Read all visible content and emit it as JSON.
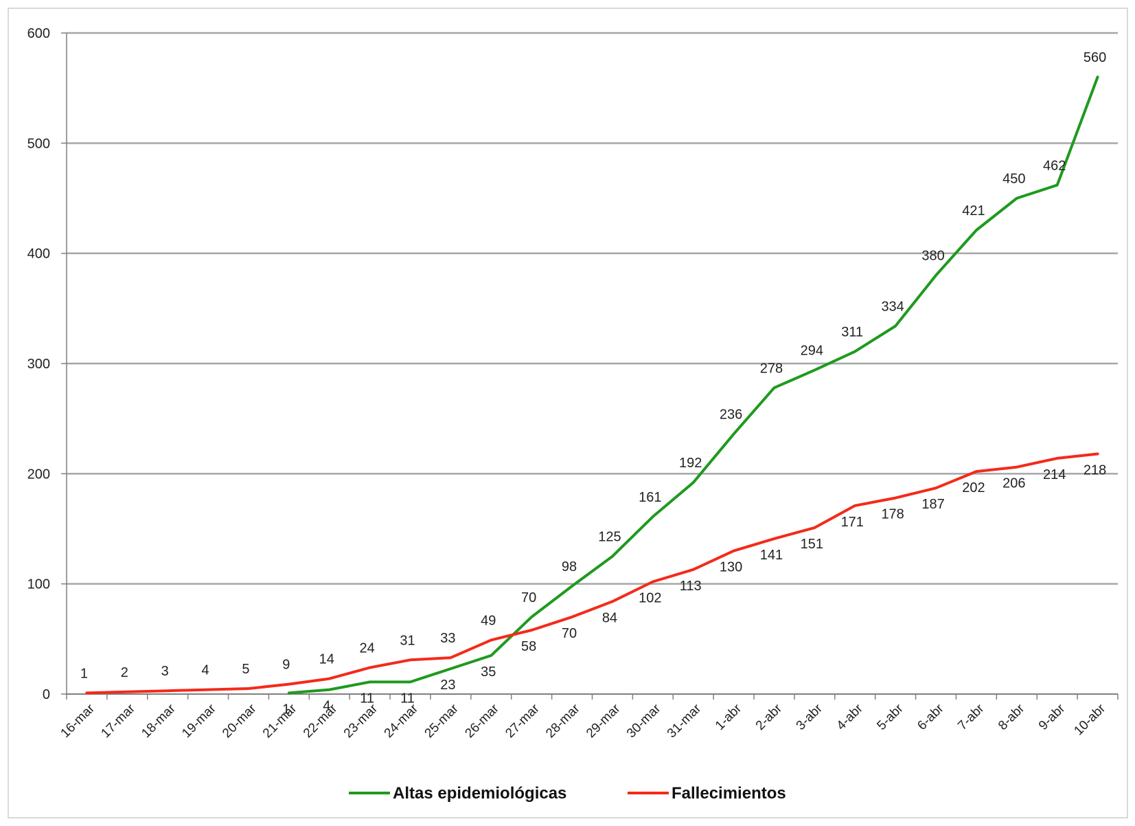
{
  "chart_data": {
    "type": "line",
    "categories": [
      "16-mar",
      "17-mar",
      "18-mar",
      "19-mar",
      "20-mar",
      "21-mar",
      "22-mar",
      "23-mar",
      "24-mar",
      "25-mar",
      "26-mar",
      "27-mar",
      "28-mar",
      "29-mar",
      "30-mar",
      "31-mar",
      "1-abr",
      "2-abr",
      "3-abr",
      "4-abr",
      "5-abr",
      "6-abr",
      "7-abr",
      "8-abr",
      "9-abr",
      "10-abr"
    ],
    "series": [
      {
        "name": "Altas epidemiológicas",
        "color": "#1e9a1e",
        "values": [
          null,
          null,
          null,
          null,
          null,
          1,
          4,
          11,
          11,
          23,
          35,
          70,
          98,
          125,
          161,
          192,
          236,
          278,
          294,
          311,
          334,
          380,
          421,
          450,
          462,
          560
        ]
      },
      {
        "name": "Fallecimientos",
        "color": "#f42a1a",
        "values": [
          1,
          2,
          3,
          4,
          5,
          9,
          14,
          24,
          31,
          33,
          49,
          58,
          70,
          84,
          102,
          113,
          130,
          141,
          151,
          171,
          178,
          187,
          202,
          206,
          214,
          218
        ]
      }
    ],
    "data_labels": {
      "Altas epidemiológicas": [
        "",
        "",
        "",
        "",
        "",
        "1",
        "4",
        "11",
        "11",
        "23",
        "35",
        "70",
        "98",
        "125",
        "161",
        "192",
        "236",
        "278",
        "294",
        "311",
        "334",
        "380",
        "421",
        "450",
        "462",
        "560"
      ],
      "Fallecimientos": [
        "1",
        "2",
        "3",
        "4",
        "5",
        "9",
        "14",
        "24",
        "31",
        "33",
        "49",
        "58",
        "70",
        "84",
        "102",
        "113",
        "130",
        "141",
        "151",
        "171",
        "178",
        "187",
        "202",
        "206",
        "214",
        "218"
      ]
    },
    "y_ticks": [
      "0",
      "100",
      "200",
      "300",
      "400",
      "500",
      "600"
    ],
    "ylim": [
      0,
      600
    ],
    "title": "",
    "xlabel": "",
    "ylabel": "",
    "grid": "horizontal",
    "legend_position": "bottom"
  }
}
